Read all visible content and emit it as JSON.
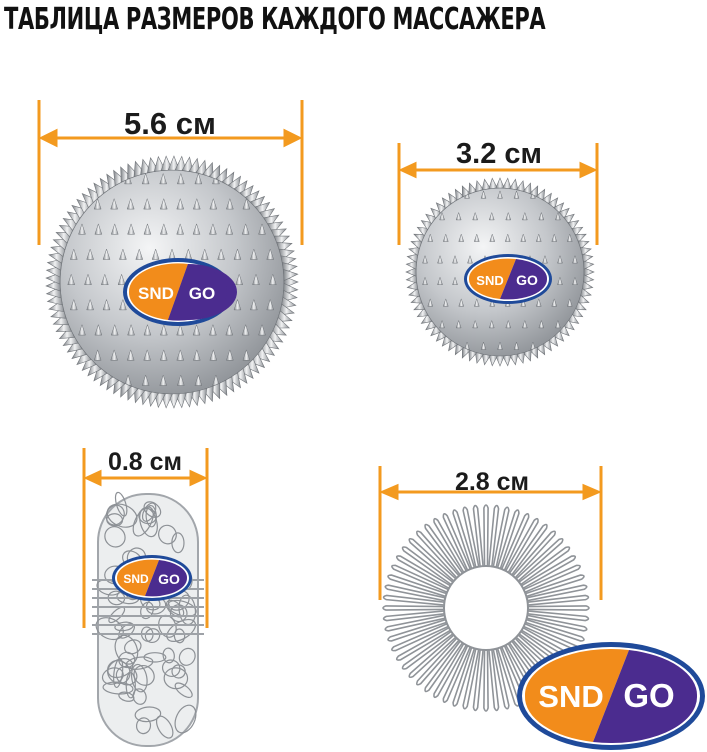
{
  "title": "ТАБЛИЦА РАЗМЕРОВ КАЖДОГО МАССАЖЕРА",
  "colors": {
    "accent": "#f39a1f",
    "metal": "#b9bcc0",
    "logo_orange": "#f28c1b",
    "logo_purple": "#4b2c8f"
  },
  "logo": {
    "left_text": "SND",
    "right_text": "GO"
  },
  "items": [
    {
      "name": "large-spiky-ball",
      "size_label": "5.6 см",
      "icon": "spiky-ball-icon"
    },
    {
      "name": "small-spiky-ball",
      "size_label": "3.2 см",
      "icon": "spiky-ball-icon"
    },
    {
      "name": "wire-roller",
      "size_label": "0.8 см",
      "icon": "wire-roller-icon"
    },
    {
      "name": "spring-ring",
      "size_label": "2.8 см",
      "icon": "spring-ring-icon"
    }
  ]
}
